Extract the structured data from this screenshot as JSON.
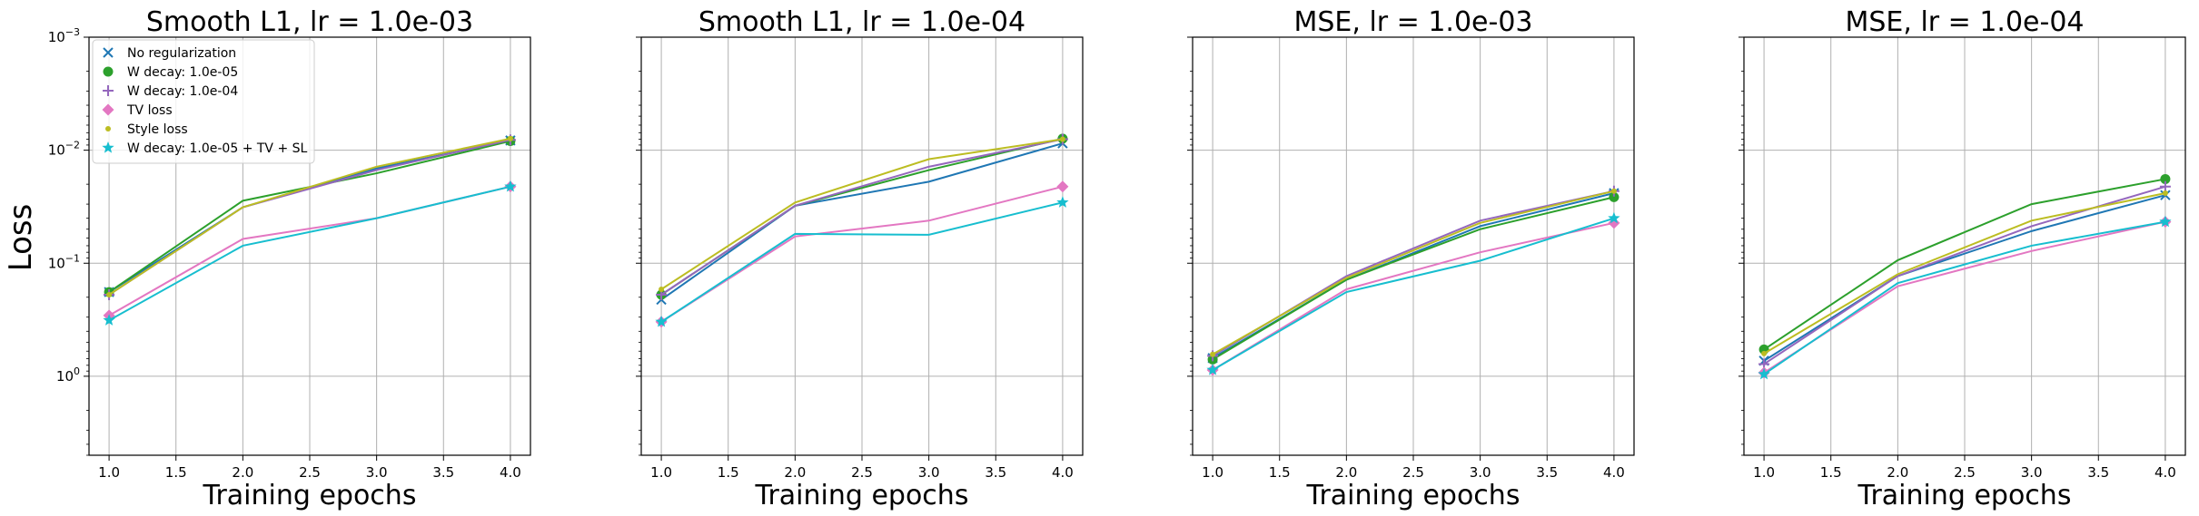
{
  "chart_data": [
    {
      "type": "line",
      "title": "Smooth L1, lr = 1.0e-03",
      "xlabel": "Training epochs",
      "ylabel": "Loss",
      "x": [
        1.0,
        2.0,
        3.0,
        4.0
      ],
      "xticks": [
        "1.0",
        "1.5",
        "2.0",
        "2.5",
        "3.0",
        "3.5",
        "4.0"
      ],
      "xlim": [
        0.85,
        4.15
      ],
      "yscale": "log",
      "yaxis_inverted": true,
      "ylim": [
        5,
        0.001
      ],
      "yticks": [
        "10^0",
        "10^-1",
        "10^-2",
        "10^-3"
      ],
      "grid": true,
      "legend_position": "top-left",
      "series": [
        {
          "name": "No regularization",
          "marker": "x",
          "color": "#1f77b4",
          "values": [
            0.18,
            0.032,
            0.0145,
            0.0082
          ]
        },
        {
          "name": "W decay: 1.0e-05",
          "marker": "o",
          "color": "#2ca02c",
          "values": [
            0.18,
            0.028,
            0.016,
            0.0083
          ]
        },
        {
          "name": "W decay: 1.0e-04",
          "marker": "+",
          "color": "#9467bd",
          "values": [
            0.19,
            0.032,
            0.015,
            0.0081
          ]
        },
        {
          "name": "TV loss",
          "marker": "D",
          "color": "#e377c2",
          "values": [
            0.29,
            0.061,
            0.04,
            0.021
          ]
        },
        {
          "name": "Style loss",
          "marker": ".",
          "color": "#bcbd22",
          "values": [
            0.19,
            0.032,
            0.014,
            0.0079
          ]
        },
        {
          "name": "W decay: 1.0e-05 + TV + SL",
          "marker": "*",
          "color": "#17becf",
          "values": [
            0.32,
            0.07,
            0.04,
            0.021
          ]
        }
      ]
    },
    {
      "type": "line",
      "title": "Smooth L1, lr = 1.0e-04",
      "xlabel": "Training epochs",
      "x": [
        1.0,
        2.0,
        3.0,
        4.0
      ],
      "xticks": [
        "1.0",
        "1.5",
        "2.0",
        "2.5",
        "3.0",
        "3.5",
        "4.0"
      ],
      "xlim": [
        0.85,
        4.15
      ],
      "yscale": "log",
      "yaxis_inverted": true,
      "ylim": [
        5,
        0.001
      ],
      "grid": true,
      "series": [
        {
          "name": "No regularization",
          "marker": "x",
          "color": "#1f77b4",
          "values": [
            0.21,
            0.031,
            0.019,
            0.0087
          ]
        },
        {
          "name": "W decay: 1.0e-05",
          "marker": "o",
          "color": "#2ca02c",
          "values": [
            0.19,
            0.031,
            0.015,
            0.0079
          ]
        },
        {
          "name": "W decay: 1.0e-04",
          "marker": "+",
          "color": "#9467bd",
          "values": [
            0.19,
            0.031,
            0.014,
            0.008
          ]
        },
        {
          "name": "TV loss",
          "marker": "D",
          "color": "#e377c2",
          "values": [
            0.33,
            0.058,
            0.042,
            0.021
          ]
        },
        {
          "name": "Style loss",
          "marker": ".",
          "color": "#bcbd22",
          "values": [
            0.17,
            0.029,
            0.012,
            0.008
          ]
        },
        {
          "name": "W decay: 1.0e-05 + TV + SL",
          "marker": "*",
          "color": "#17becf",
          "values": [
            0.33,
            0.055,
            0.056,
            0.029
          ]
        }
      ]
    },
    {
      "type": "line",
      "title": "MSE, lr = 1.0e-03",
      "xlabel": "Training epochs",
      "x": [
        1.0,
        2.0,
        3.0,
        4.0
      ],
      "xticks": [
        "1.0",
        "1.5",
        "2.0",
        "2.5",
        "3.0",
        "3.5",
        "4.0"
      ],
      "xlim": [
        0.85,
        4.15
      ],
      "yscale": "log",
      "yaxis_inverted": true,
      "ylim": [
        5,
        0.001
      ],
      "grid": true,
      "series": [
        {
          "name": "No regularization",
          "marker": "x",
          "color": "#1f77b4",
          "values": [
            0.69,
            0.14,
            0.047,
            0.024
          ]
        },
        {
          "name": "W decay: 1.0e-05",
          "marker": "o",
          "color": "#2ca02c",
          "values": [
            0.71,
            0.14,
            0.05,
            0.026
          ]
        },
        {
          "name": "W decay: 1.0e-04",
          "marker": "+",
          "color": "#9467bd",
          "values": [
            0.66,
            0.13,
            0.042,
            0.023
          ]
        },
        {
          "name": "TV loss",
          "marker": "D",
          "color": "#e377c2",
          "values": [
            0.88,
            0.17,
            0.08,
            0.044
          ]
        },
        {
          "name": "Style loss",
          "marker": ".",
          "color": "#bcbd22",
          "values": [
            0.64,
            0.135,
            0.044,
            0.023
          ]
        },
        {
          "name": "W decay: 1.0e-05 + TV + SL",
          "marker": "*",
          "color": "#17becf",
          "values": [
            0.88,
            0.18,
            0.095,
            0.04
          ]
        }
      ]
    },
    {
      "type": "line",
      "title": "MSE, lr = 1.0e-04",
      "xlabel": "Training epochs",
      "x": [
        1.0,
        2.0,
        3.0,
        4.0
      ],
      "xticks": [
        "1.0",
        "1.5",
        "2.0",
        "2.5",
        "3.0",
        "3.5",
        "4.0"
      ],
      "xlim": [
        0.85,
        4.15
      ],
      "yscale": "log",
      "yaxis_inverted": true,
      "ylim": [
        5,
        0.001
      ],
      "grid": true,
      "series": [
        {
          "name": "No regularization",
          "marker": "x",
          "color": "#1f77b4",
          "values": [
            0.73,
            0.13,
            0.052,
            0.025
          ]
        },
        {
          "name": "W decay: 1.0e-05",
          "marker": "o",
          "color": "#2ca02c",
          "values": [
            0.58,
            0.094,
            0.03,
            0.018
          ]
        },
        {
          "name": "W decay: 1.0e-04",
          "marker": "+",
          "color": "#9467bd",
          "values": [
            0.78,
            0.13,
            0.047,
            0.021
          ]
        },
        {
          "name": "TV loss",
          "marker": "D",
          "color": "#e377c2",
          "values": [
            0.93,
            0.16,
            0.078,
            0.043
          ]
        },
        {
          "name": "Style loss",
          "marker": ".",
          "color": "#bcbd22",
          "values": [
            0.63,
            0.125,
            0.042,
            0.024
          ]
        },
        {
          "name": "W decay: 1.0e-05 + TV + SL",
          "marker": "*",
          "color": "#17becf",
          "values": [
            0.96,
            0.15,
            0.07,
            0.043
          ]
        }
      ]
    }
  ]
}
